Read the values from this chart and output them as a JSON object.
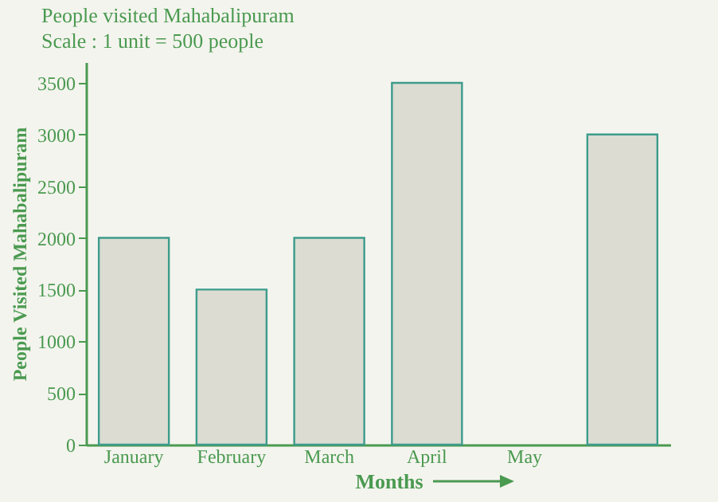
{
  "chart_data": {
    "type": "bar",
    "title": "People visited Mahabalipuram",
    "subtitle": "Scale : 1 unit = 500 people",
    "xlabel": "Months",
    "ylabel": "People Visited Mahabalipuram",
    "categories": [
      "January",
      "February",
      "March",
      "April",
      "May",
      null
    ],
    "values": [
      2000,
      1500,
      2000,
      3500,
      null,
      3000
    ],
    "color": "#dcdcd2",
    "ylim": [
      0,
      3700
    ],
    "yticks": [
      0,
      500,
      1000,
      1500,
      2000,
      2500,
      3000,
      3500
    ],
    "grid": false
  }
}
